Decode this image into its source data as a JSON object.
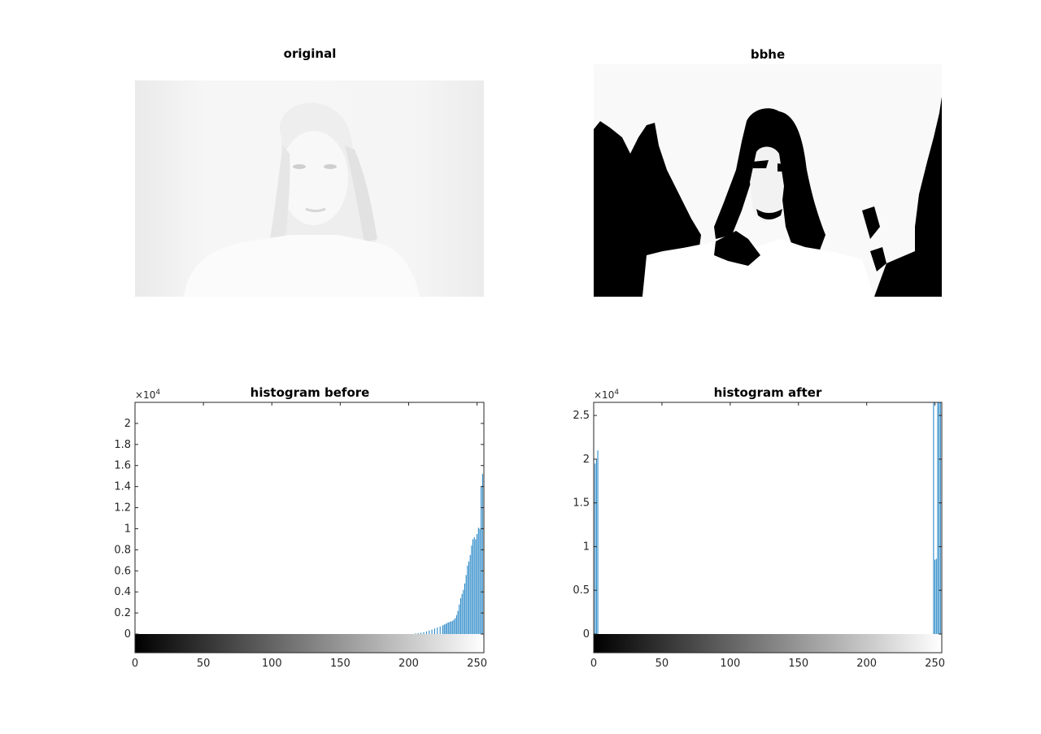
{
  "figure": {
    "panels": [
      {
        "id": "original",
        "title": "original"
      },
      {
        "id": "bbhe",
        "title": "bbhe"
      },
      {
        "id": "hist-before",
        "title": "histogram before"
      },
      {
        "id": "hist-after",
        "title": "histogram after"
      }
    ]
  },
  "images": {
    "original": {
      "subject": "woman portrait, very bright low-contrast grayscale"
    },
    "bbhe": {
      "subject": "same portrait after bi-histogram equalization, near-binary black and white"
    }
  },
  "chart_data": [
    {
      "type": "bar",
      "title": "histogram before",
      "xlim": [
        0,
        255
      ],
      "xticks": [
        0,
        50,
        100,
        150,
        200,
        250
      ],
      "ylim": [
        0,
        22000
      ],
      "yticks": [
        0,
        2000,
        4000,
        6000,
        8000,
        10000,
        12000,
        14000,
        16000,
        18000,
        20000
      ],
      "ytick_labels": [
        "0",
        "0.2",
        "0.4",
        "0.6",
        "0.8",
        "1",
        "1.2",
        "1.4",
        "1.6",
        "1.8",
        "2"
      ],
      "exponent_label": "×10",
      "exponent_power": "4",
      "bar_color": "#0072bd",
      "colorbar": "gray 0-255",
      "x": [
        205,
        207,
        209,
        211,
        213,
        215,
        217,
        219,
        221,
        223,
        225,
        226,
        227,
        228,
        229,
        230,
        231,
        232,
        233,
        234,
        235,
        236,
        237,
        238,
        239,
        240,
        241,
        242,
        243,
        244,
        245,
        246,
        247,
        248,
        249,
        250,
        251,
        252,
        253,
        254,
        255
      ],
      "values": [
        50,
        80,
        120,
        180,
        250,
        330,
        420,
        520,
        620,
        720,
        820,
        900,
        950,
        1050,
        1100,
        1150,
        1200,
        1250,
        1350,
        1500,
        1800,
        2200,
        2800,
        3400,
        3800,
        4200,
        4800,
        5600,
        6500,
        6900,
        7500,
        8400,
        9000,
        9200,
        9000,
        9500,
        10100,
        10000,
        14000,
        15200,
        22000
      ]
    },
    {
      "type": "bar",
      "title": "histogram after",
      "xlim": [
        0,
        255
      ],
      "xticks": [
        0,
        50,
        100,
        150,
        200,
        250
      ],
      "ylim": [
        0,
        26500
      ],
      "yticks": [
        0,
        5000,
        10000,
        15000,
        20000,
        25000
      ],
      "ytick_labels": [
        "0",
        "0.5",
        "1",
        "1.5",
        "2",
        "2.5"
      ],
      "exponent_label": "×10",
      "exponent_power": "4",
      "bar_color": "#0072bd",
      "colorbar": "gray 0-255",
      "x": [
        0,
        1,
        2,
        3,
        249,
        250,
        251,
        252,
        253,
        254,
        255
      ],
      "values": [
        9000,
        19500,
        20000,
        21000,
        26500,
        8500,
        8600,
        26500,
        26500,
        26500,
        9000
      ]
    }
  ]
}
